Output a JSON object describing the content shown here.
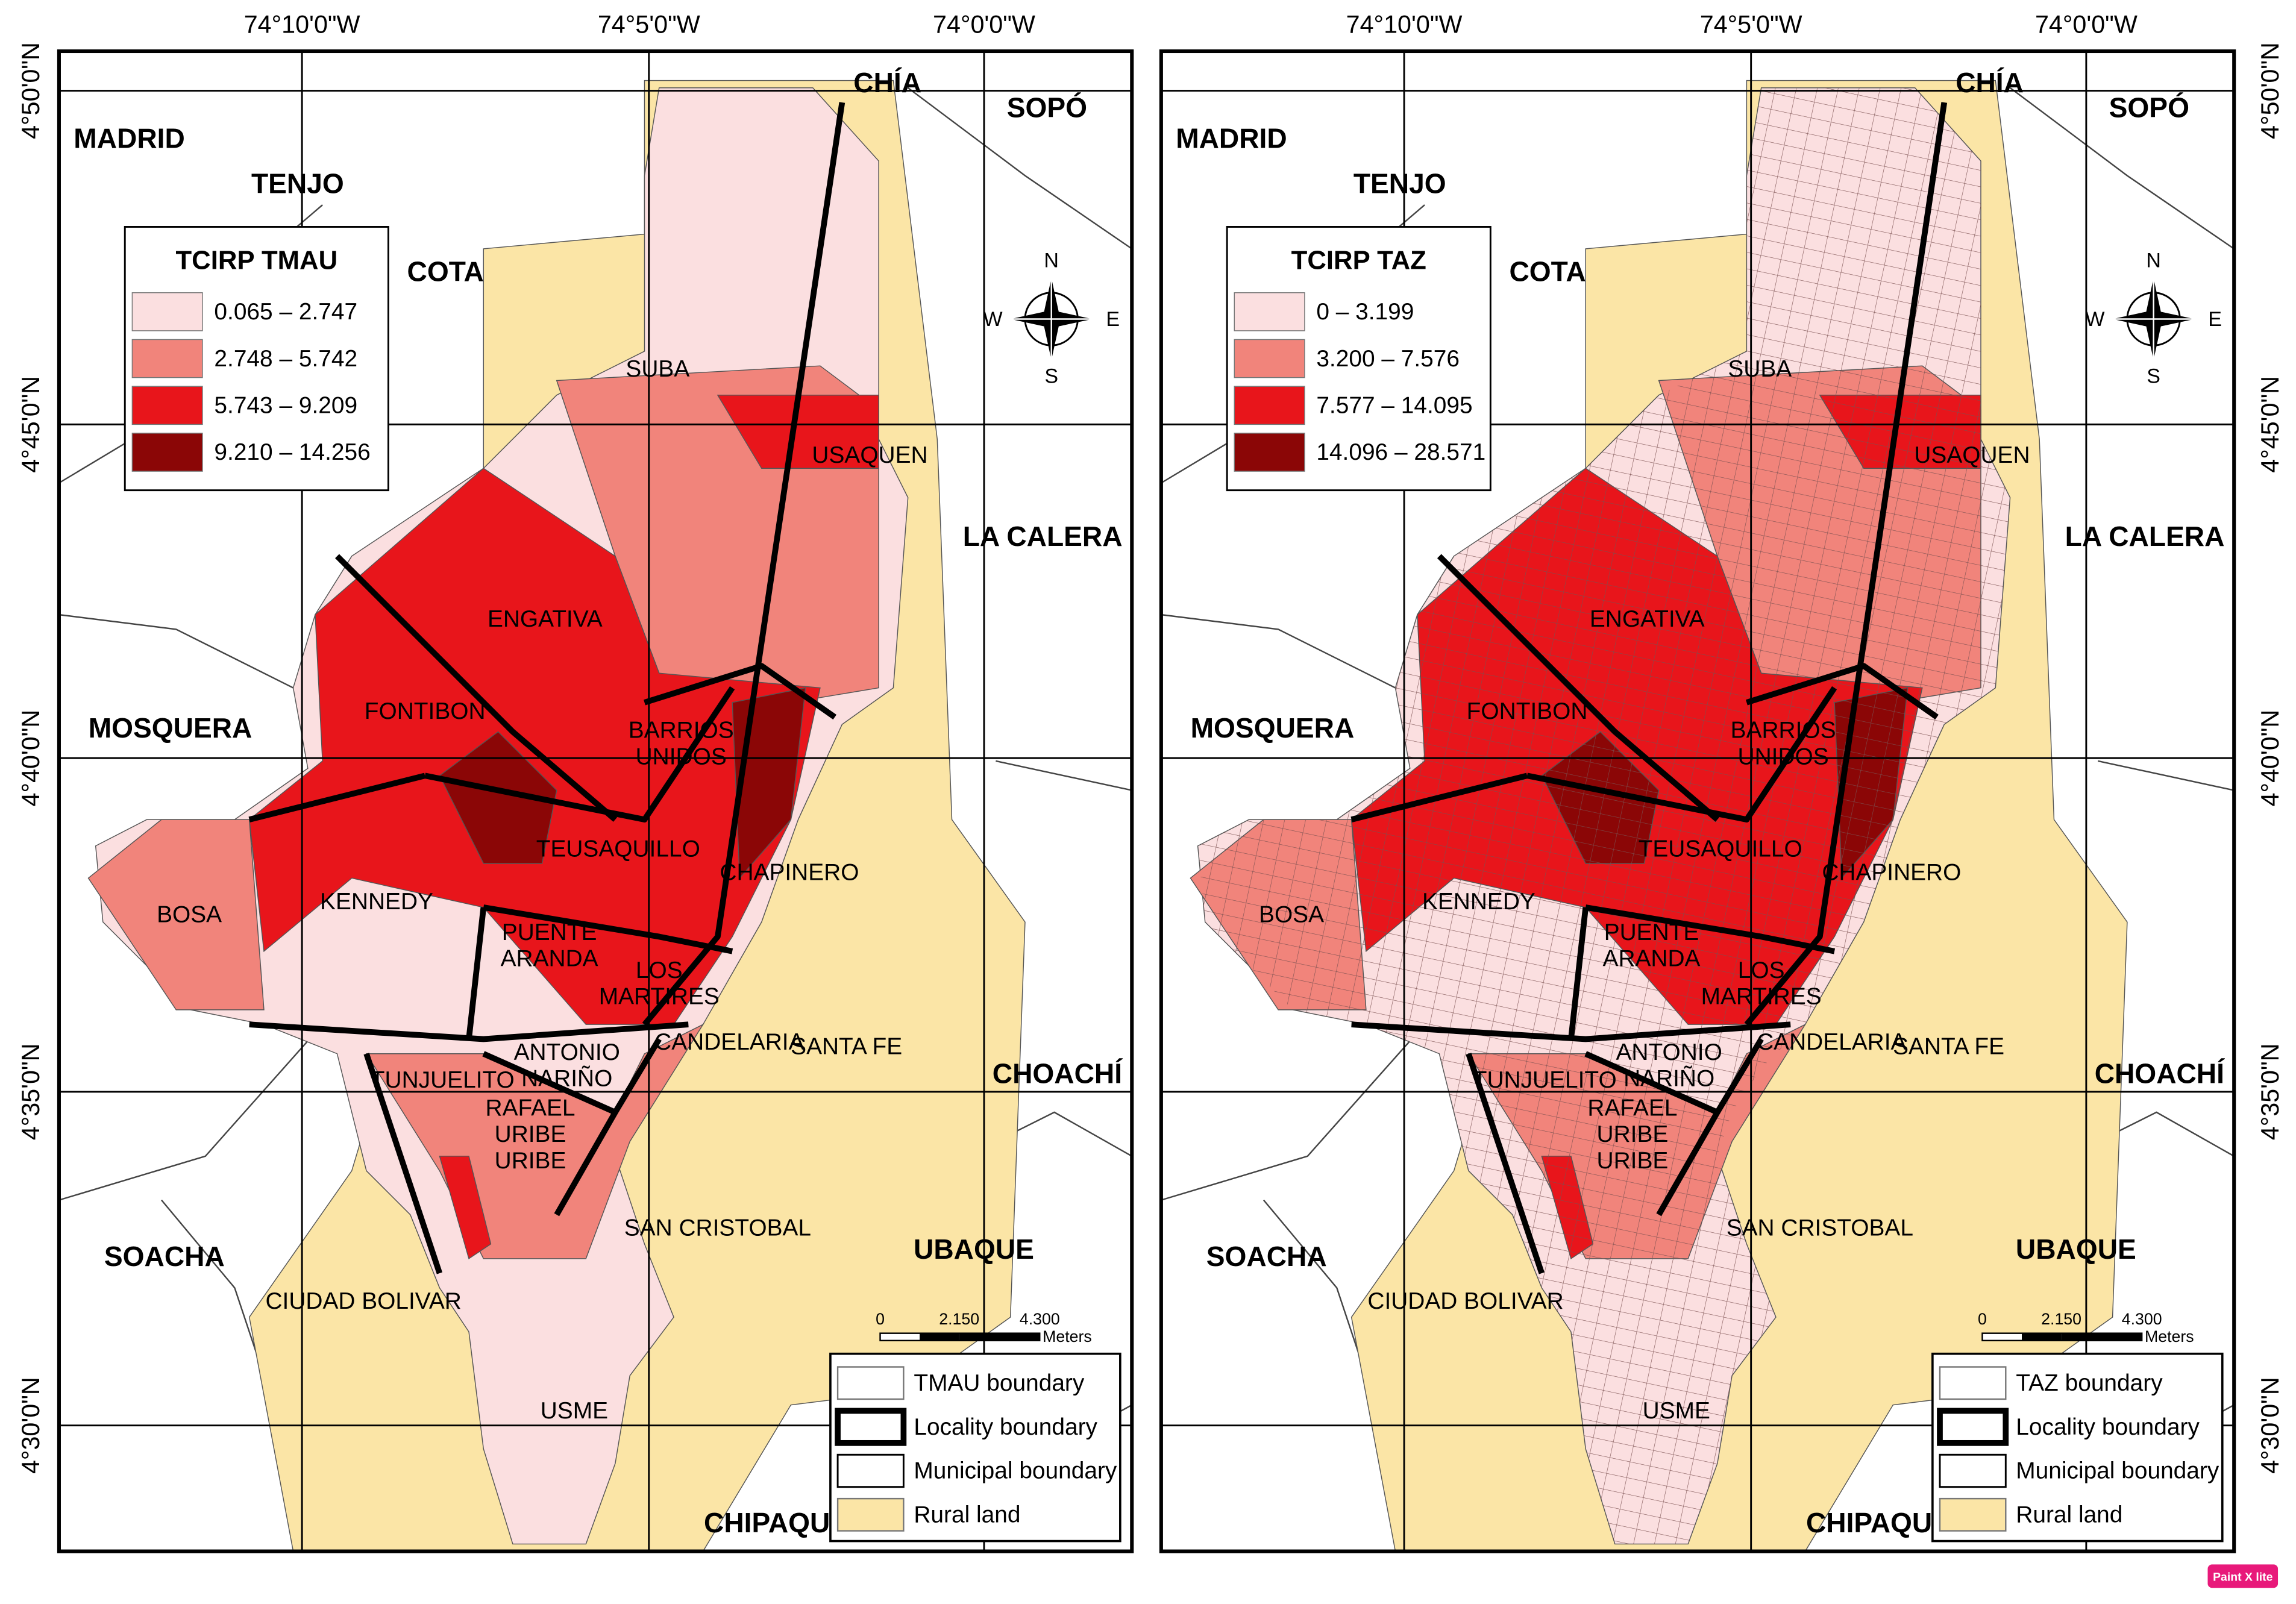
{
  "longitude_labels": [
    "74°10'0\"W",
    "74°5'0\"W",
    "74°0'0\"W"
  ],
  "latitude_labels": [
    "4°50'0\"N",
    "4°45'0\"N",
    "4°40'0\"N",
    "4°35'0\"N",
    "4°30'0\"N"
  ],
  "places": [
    [
      "MADRID"
    ],
    [
      "TENJO"
    ],
    [
      "COTA"
    ],
    [
      "CHÍA"
    ],
    [
      "SOPÓ"
    ],
    [
      "SUBA"
    ],
    [
      "USAQUEN"
    ],
    [
      "LA CALERA"
    ],
    [
      "ENGATIVA"
    ],
    [
      "FONTIBON"
    ],
    [
      "MOSQUERA"
    ],
    [
      "BARRIOS",
      "UNIDOS"
    ],
    [
      "TEUSAQUILLO"
    ],
    [
      "CHAPINERO"
    ],
    [
      "BOSA"
    ],
    [
      "KENNEDY"
    ],
    [
      "PUENTE",
      "ARANDA"
    ],
    [
      "LOS",
      "MARTIRES"
    ],
    [
      "CANDELARIA"
    ],
    [
      "SANTA FE"
    ],
    [
      "ANTONIO",
      "NARIÑO"
    ],
    [
      "CHOACHÍ"
    ],
    [
      "TUNJUELITO"
    ],
    [
      "RAFAEL",
      "URIBE",
      "URIBE"
    ],
    [
      "SOACHA"
    ],
    [
      "SAN CRISTOBAL"
    ],
    [
      "UBAQUE"
    ],
    [
      "CIUDAD BOLIVAR"
    ],
    [
      "USME"
    ],
    [
      "CHIPAQUE"
    ]
  ],
  "compass": {
    "north": "N",
    "east": "E",
    "south": "S",
    "west": "W"
  },
  "scale_bar": {
    "labels": [
      "0",
      "2.150",
      "4.300"
    ],
    "unit": "Meters"
  },
  "maps": [
    {
      "legend_title": "TCIRP TMAU",
      "classes": [
        {
          "label": "0.065 – 2.747",
          "color": "#fbdfe0"
        },
        {
          "label": "2.748 – 5.742",
          "color": "#f1847b"
        },
        {
          "label": "5.743 – 9.209",
          "color": "#e8151b"
        },
        {
          "label": "9.210 – 14.256",
          "color": "#8b0606"
        }
      ],
      "boundary_legend": [
        "TMAU boundary",
        "Locality boundary",
        "Municipal boundary",
        "Rural land"
      ]
    },
    {
      "legend_title": "TCIRP TAZ",
      "classes": [
        {
          "label": "0 – 3.199",
          "color": "#fbdfe0"
        },
        {
          "label": "3.200 – 7.576",
          "color": "#f1847b"
        },
        {
          "label": "7.577 – 14.095",
          "color": "#e8151b"
        },
        {
          "label": "14.096 – 28.571",
          "color": "#8b0606"
        }
      ],
      "boundary_legend": [
        "TAZ boundary",
        "Locality boundary",
        "Municipal boundary",
        "Rural land"
      ]
    }
  ],
  "watermark": "Paint X lite"
}
